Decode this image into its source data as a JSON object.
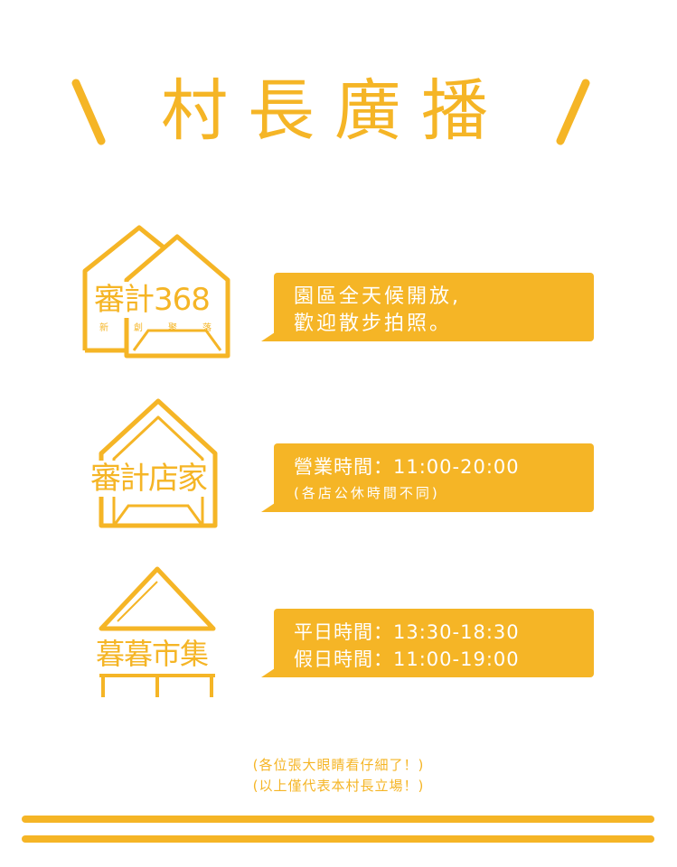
{
  "title": "村長廣播",
  "sections": [
    {
      "logo_main": "審計368",
      "logo_sub": [
        "新",
        "創",
        "聚",
        "落"
      ],
      "lines": [
        "園區全天候開放,",
        "歡迎散步拍照。"
      ]
    },
    {
      "logo_main": "審計店家",
      "lines": [
        "營業時間：11:00-20:00",
        "(各店公休時間不同)"
      ]
    },
    {
      "logo_main": "暮暮市集",
      "lines": [
        "平日時間：13:30-18:30",
        "假日時間：11:00-19:00"
      ]
    }
  ],
  "footer": {
    "note1": "(各位張大眼睛看仔細了！)",
    "note2": "(以上僅代表本村長立場！)"
  },
  "colors": {
    "accent": "#F5B526",
    "background": "#FFFFFF",
    "bubble_text": "#FFFFFF"
  }
}
